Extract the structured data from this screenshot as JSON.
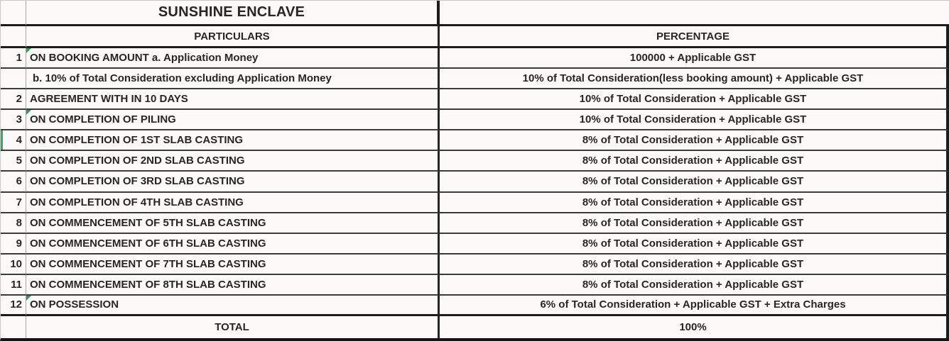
{
  "table": {
    "title": "SUNSHINE ENCLAVE",
    "headers": {
      "particulars": "PARTICULARS",
      "percentage": "PERCENTAGE"
    },
    "rows": [
      {
        "num": "1",
        "particulars": "ON BOOKING AMOUNT a. Application Money",
        "percentage": "100000 + Applicable GST"
      },
      {
        "num": "",
        "particulars": "b. 10% of Total Consideration excluding Application Money",
        "percentage": "10% of Total Consideration(less booking amount) + Applicable GST"
      },
      {
        "num": "2",
        "particulars": "AGREEMENT WITH IN 10 DAYS",
        "percentage": "10% of Total Consideration + Applicable GST"
      },
      {
        "num": "3",
        "particulars": "ON COMPLETION OF PILING",
        "percentage": "10% of Total Consideration + Applicable GST"
      },
      {
        "num": "4",
        "particulars": "ON COMPLETION OF 1ST SLAB CASTING",
        "percentage": "8% of Total Consideration + Applicable GST"
      },
      {
        "num": "5",
        "particulars": "ON COMPLETION OF 2ND SLAB CASTING",
        "percentage": "8% of Total Consideration + Applicable GST"
      },
      {
        "num": "6",
        "particulars": "ON COMPLETION OF 3RD SLAB CASTING",
        "percentage": "8% of Total Consideration + Applicable GST"
      },
      {
        "num": "7",
        "particulars": "ON COMPLETION OF 4TH SLAB CASTING",
        "percentage": "8% of Total Consideration + Applicable GST"
      },
      {
        "num": "8",
        "particulars": "ON COMMENCEMENT OF 5TH SLAB CASTING",
        "percentage": "8% of Total Consideration + Applicable GST"
      },
      {
        "num": "9",
        "particulars": "ON COMMENCEMENT OF 6TH SLAB CASTING",
        "percentage": "8% of Total Consideration + Applicable GST"
      },
      {
        "num": "10",
        "particulars": "ON COMMENCEMENT OF 7TH SLAB CASTING",
        "percentage": "8% of Total Consideration + Applicable GST"
      },
      {
        "num": "11",
        "particulars": "ON COMMENCEMENT OF 8TH SLAB CASTING",
        "percentage": "8% of Total Consideration + Applicable GST"
      },
      {
        "num": "12",
        "particulars": "ON POSSESSION",
        "percentage": "6% of Total Consideration + Applicable GST + Extra Charges"
      }
    ],
    "total": {
      "label": "TOTAL",
      "value": "100%"
    }
  },
  "colors": {
    "flag_green": "#2f9e53",
    "row_marker_green": "#38a869",
    "border_dark": "#1c1c1c",
    "text": "#262626",
    "background": "#fbfaf8"
  }
}
